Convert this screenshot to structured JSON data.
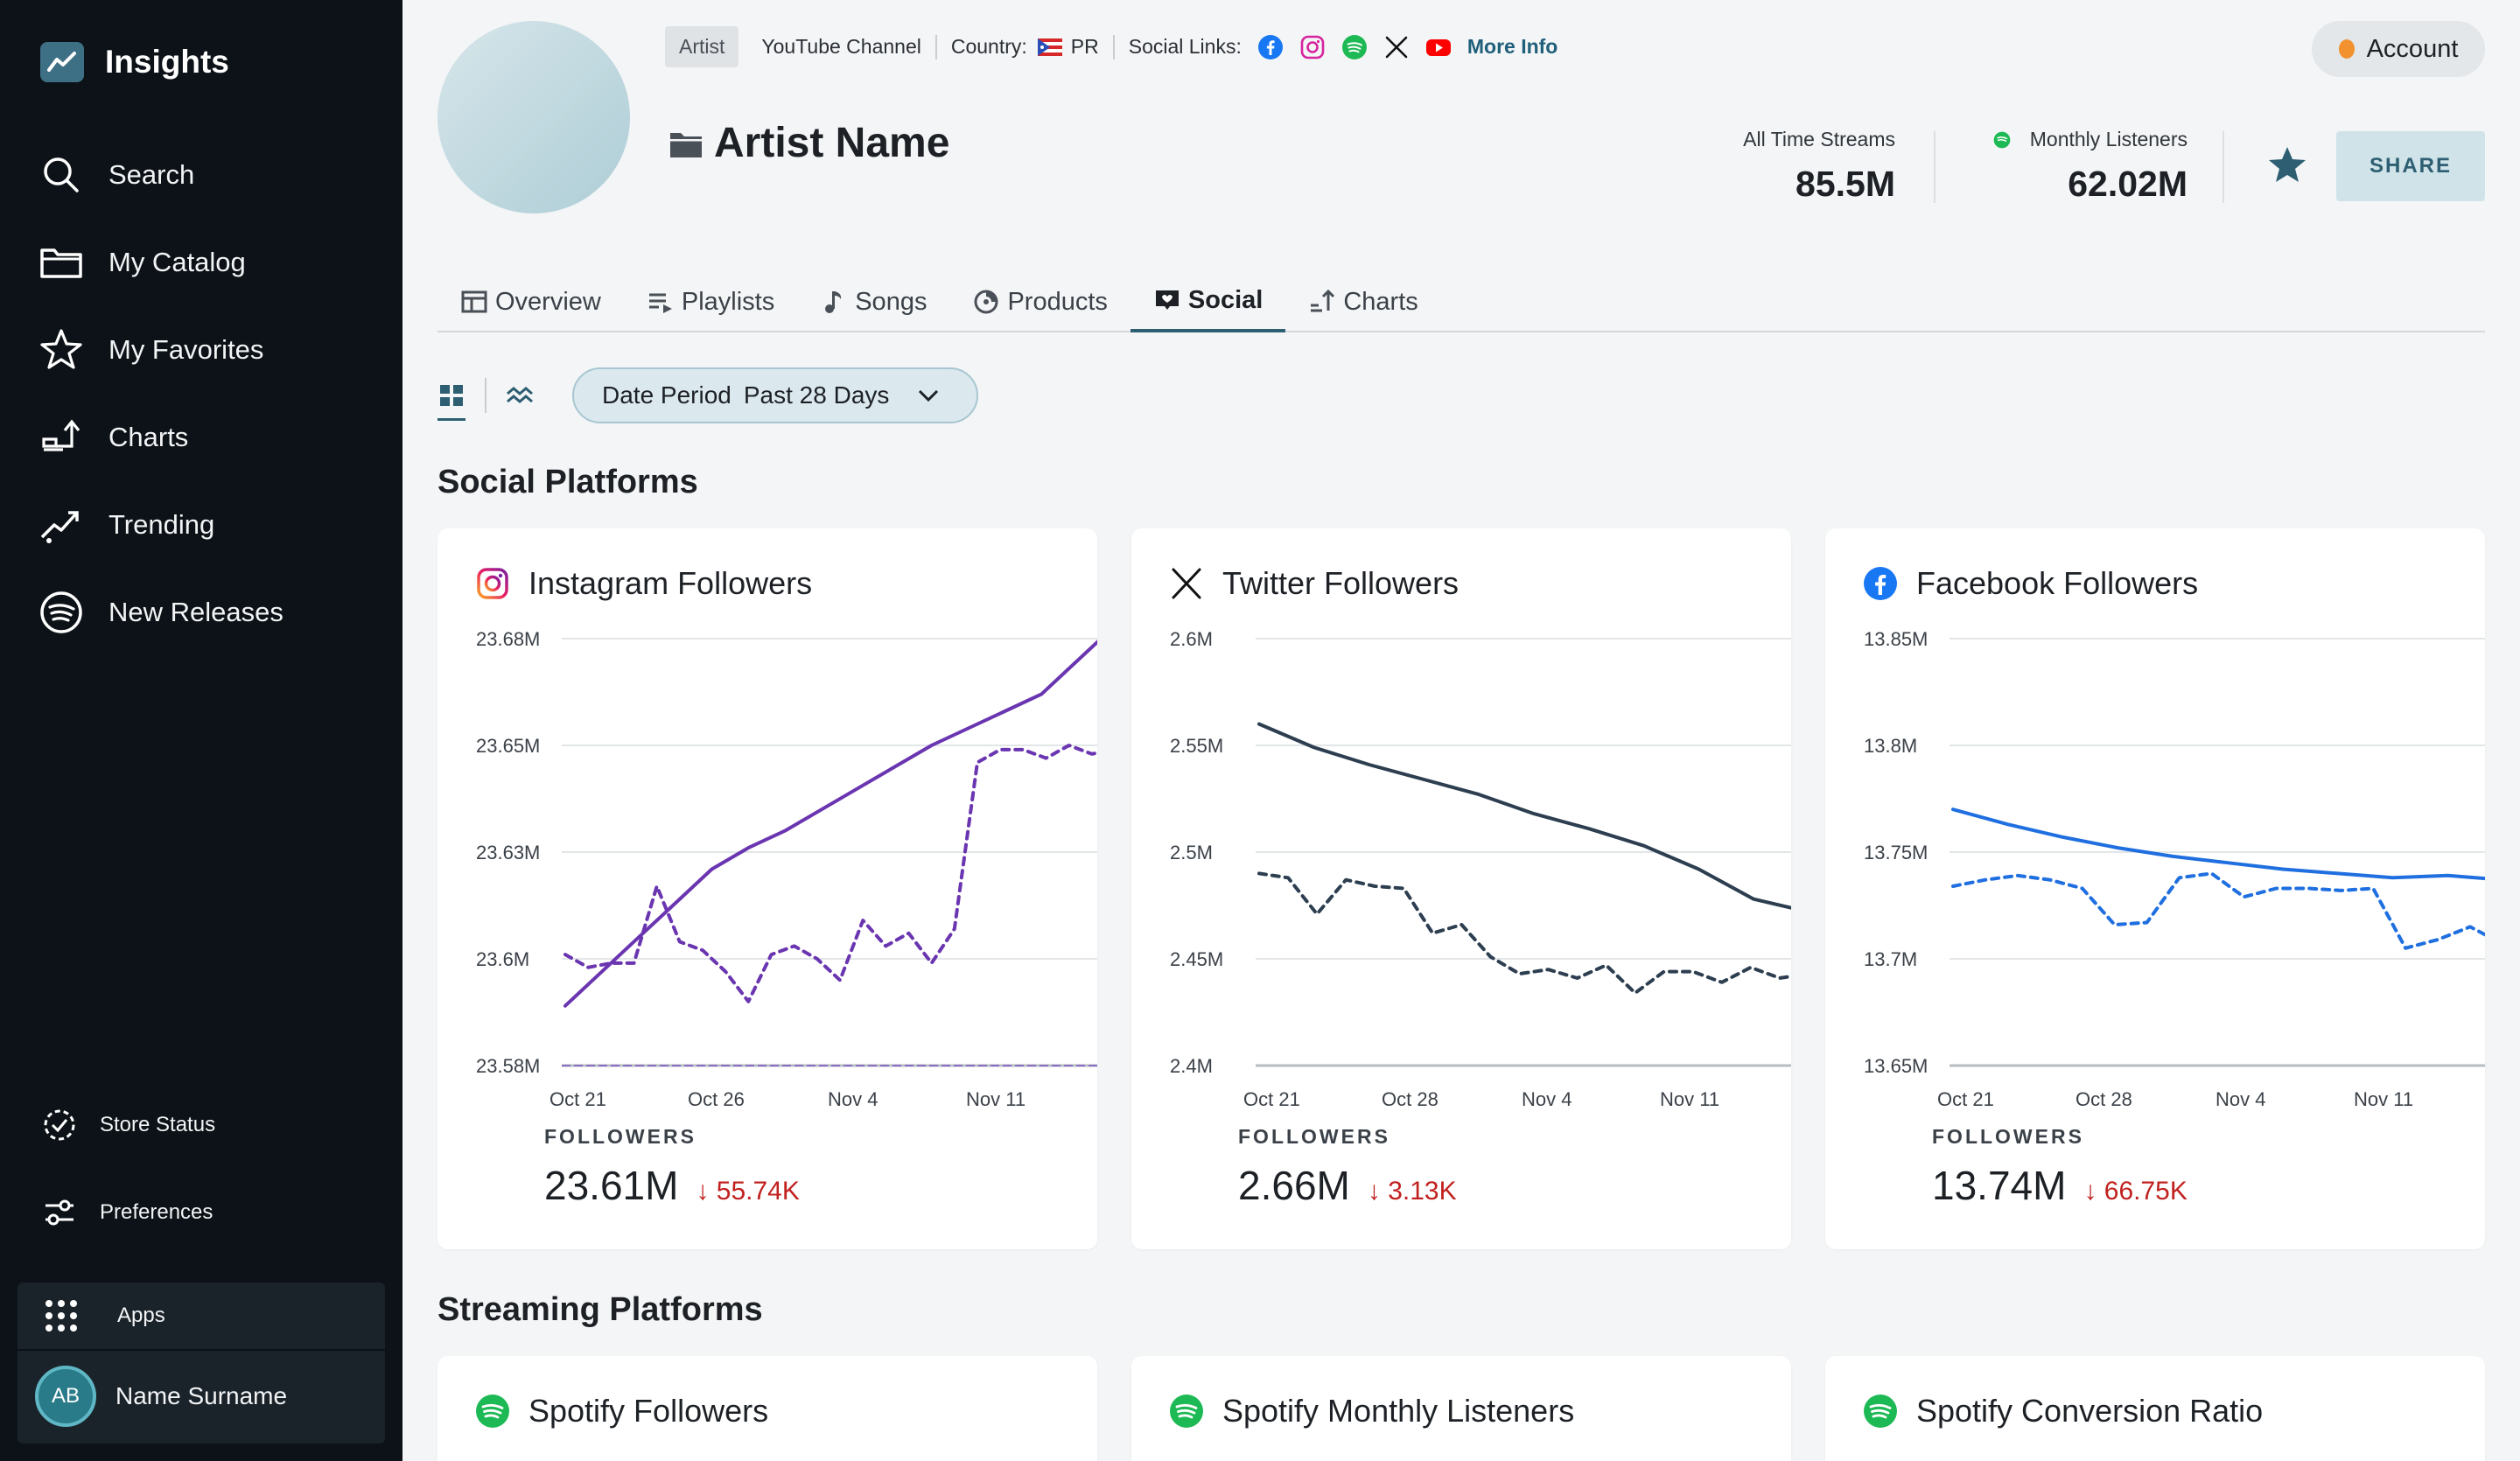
{
  "sidebar": {
    "brand": "Insights",
    "nav": [
      {
        "label": "Search",
        "icon": "search-icon"
      },
      {
        "label": "My Catalog",
        "icon": "folder-icon"
      },
      {
        "label": "My Favorites",
        "icon": "star-icon"
      },
      {
        "label": "Charts",
        "icon": "charts-icon"
      },
      {
        "label": "Trending",
        "icon": "trending-icon"
      },
      {
        "label": "New Releases",
        "icon": "spotify-icon"
      }
    ],
    "bottom": [
      {
        "label": "Store Status",
        "icon": "store-status-icon"
      },
      {
        "label": "Preferences",
        "icon": "preferences-icon"
      }
    ],
    "apps_label": "Apps",
    "user": {
      "initials": "AB",
      "name": "Name Surname"
    }
  },
  "header": {
    "tag": "Artist",
    "channel": "YouTube Channel",
    "country_label": "Country:",
    "country": "PR",
    "social_label": "Social Links:",
    "more_info": "More Info",
    "artist_name": "Artist Name",
    "account": "Account",
    "stats": [
      {
        "label": "All Time Streams",
        "value": "85.5M"
      },
      {
        "label": "Monthly Listeners",
        "value": "62.02M"
      }
    ],
    "share": "SHARE"
  },
  "tabs": [
    {
      "label": "Overview",
      "icon": "overview-icon"
    },
    {
      "label": "Playlists",
      "icon": "playlists-icon"
    },
    {
      "label": "Songs",
      "icon": "music-note-icon"
    },
    {
      "label": "Products",
      "icon": "products-icon"
    },
    {
      "label": "Social",
      "icon": "social-icon",
      "active": true
    },
    {
      "label": "Charts",
      "icon": "charts-icon"
    }
  ],
  "filters": {
    "date_label": "Date Period",
    "date_value": "Past 28 Days"
  },
  "sections": {
    "social": "Social Platforms",
    "streaming": "Streaming Platforms"
  },
  "cards": [
    {
      "title": "Instagram Followers",
      "icon": "instagram-icon",
      "followers_label": "FOLLOWERS",
      "value": "23.61M",
      "change": "55.74K"
    },
    {
      "title": "Twitter Followers",
      "icon": "x-icon",
      "followers_label": "FOLLOWERS",
      "value": "2.66M",
      "change": "3.13K"
    },
    {
      "title": "Facebook Followers",
      "icon": "facebook-icon",
      "followers_label": "FOLLOWERS",
      "value": "13.74M",
      "change": "66.75K"
    }
  ],
  "streaming_cards": [
    {
      "title": "Spotify Followers",
      "icon": "spotify-icon"
    },
    {
      "title": "Spotify Monthly Listeners",
      "icon": "spotify-icon"
    },
    {
      "title": "Spotify Conversion Ratio",
      "icon": "spotify-icon"
    }
  ],
  "chart_data": [
    {
      "type": "line",
      "title": "Instagram Followers",
      "y_ticks": [
        "23.68M",
        "23.65M",
        "23.63M",
        "23.6M",
        "23.58M"
      ],
      "x_ticks": [
        "Oct 21",
        "Oct 26",
        "Nov 4",
        "Nov 11"
      ],
      "color": "#6a35b0",
      "series": [
        {
          "style": "solid",
          "values": [
            23.594,
            23.602,
            23.61,
            23.618,
            23.626,
            23.631,
            23.635,
            23.64,
            23.645,
            23.65,
            23.655,
            23.659,
            23.663,
            23.667,
            23.675,
            23.683
          ]
        },
        {
          "style": "dashed",
          "values": [
            23.606,
            23.603,
            23.604,
            23.604,
            23.622,
            23.609,
            23.607,
            23.602,
            23.595,
            23.606,
            23.608,
            23.605,
            23.6,
            23.614,
            23.608,
            23.611,
            23.604,
            23.612,
            23.651,
            23.654,
            23.654,
            23.652,
            23.655,
            23.653,
            23.654
          ]
        }
      ]
    },
    {
      "type": "line",
      "title": "Twitter Followers",
      "y_ticks": [
        "2.6M",
        "2.55M",
        "2.5M",
        "2.45M",
        "2.4M"
      ],
      "x_ticks": [
        "Oct 21",
        "Oct 28",
        "Nov 4",
        "Nov 11"
      ],
      "color": "#2c3e50",
      "series": [
        {
          "style": "solid",
          "values": [
            2.56,
            2.549,
            2.541,
            2.534,
            2.527,
            2.518,
            2.511,
            2.503,
            2.492,
            2.478,
            2.472
          ]
        },
        {
          "style": "dashed",
          "values": [
            2.49,
            2.488,
            2.471,
            2.487,
            2.484,
            2.483,
            2.462,
            2.466,
            2.451,
            2.443,
            2.445,
            2.441,
            2.447,
            2.434,
            2.444,
            2.444,
            2.439,
            2.446,
            2.441,
            2.443
          ]
        }
      ]
    },
    {
      "type": "line",
      "title": "Facebook Followers",
      "y_ticks": [
        "13.85M",
        "13.8M",
        "13.75M",
        "13.7M",
        "13.65M"
      ],
      "x_ticks": [
        "Oct 21",
        "Oct 28",
        "Nov 4",
        "Nov 11"
      ],
      "color": "#1f6fe0",
      "series": [
        {
          "style": "solid",
          "values": [
            13.77,
            13.763,
            13.757,
            13.752,
            13.748,
            13.745,
            13.742,
            13.74,
            13.738,
            13.739,
            13.737
          ]
        },
        {
          "style": "dashed",
          "values": [
            13.734,
            13.737,
            13.739,
            13.737,
            13.733,
            13.716,
            13.717,
            13.738,
            13.74,
            13.729,
            13.733,
            13.733,
            13.732,
            13.733,
            13.705,
            13.709,
            13.715,
            13.707
          ]
        }
      ]
    }
  ]
}
